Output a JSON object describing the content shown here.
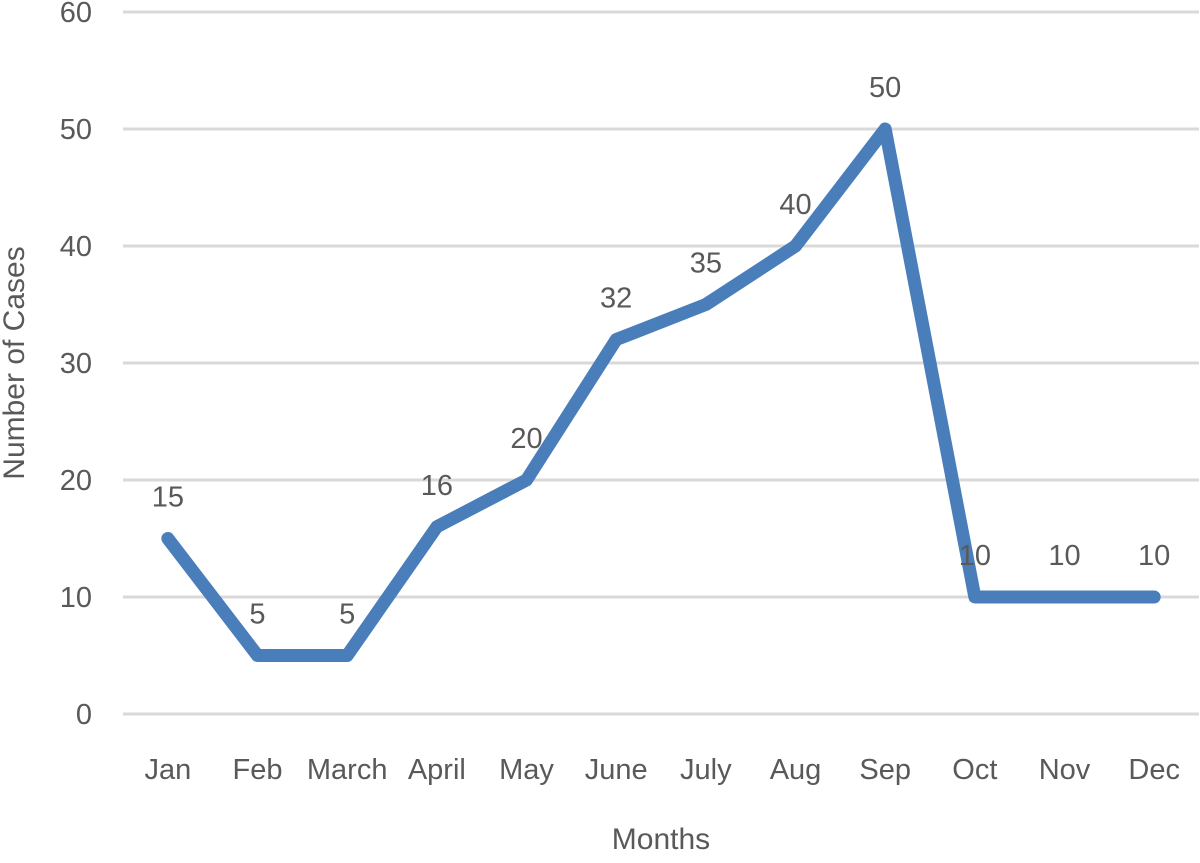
{
  "chart_data": {
    "type": "line",
    "title": "",
    "xlabel": "Months",
    "ylabel": "Number of Cases",
    "categories": [
      "Jan",
      "Feb",
      "March",
      "April",
      "May",
      "June",
      "July",
      "Aug",
      "Sep",
      "Oct",
      "Nov",
      "Dec"
    ],
    "values": [
      15,
      5,
      5,
      16,
      20,
      32,
      35,
      40,
      50,
      10,
      10,
      10
    ],
    "data_labels": [
      "15",
      "5",
      "5",
      "16",
      "20",
      "32",
      "35",
      "40",
      "50",
      "10",
      "10",
      "10"
    ],
    "ylim": [
      0,
      60
    ],
    "yticks": [
      0,
      10,
      20,
      30,
      40,
      50,
      60
    ],
    "grid": "horizontal-only",
    "legend": "none",
    "data_label_position": "above",
    "colors": {
      "line": "#4A7EBB",
      "grid": "#D9D9D9",
      "text": "#595959",
      "background": "#FFFFFF"
    }
  }
}
